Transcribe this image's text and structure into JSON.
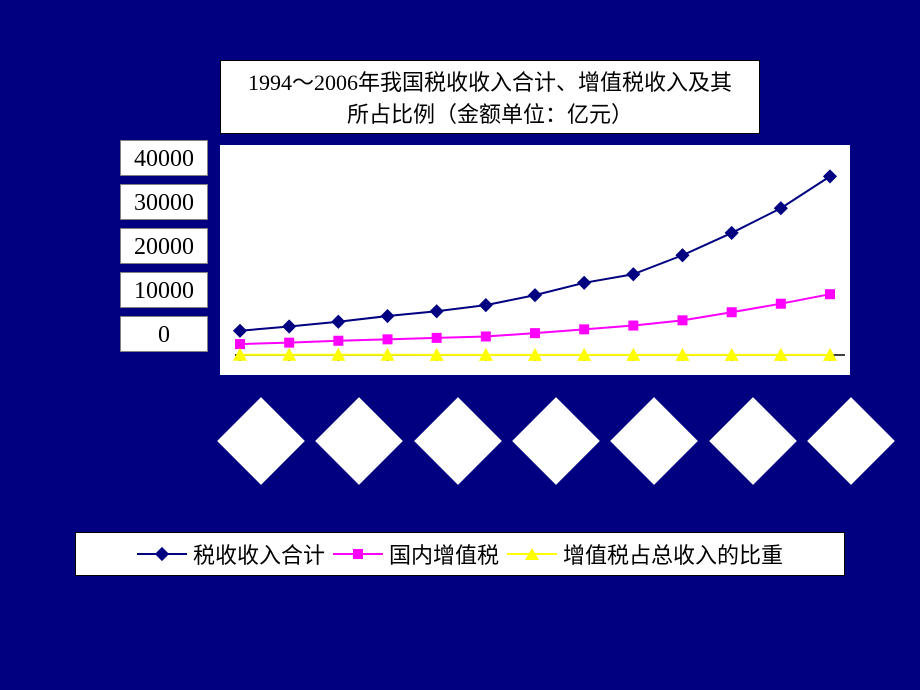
{
  "chart": {
    "type": "line",
    "background_color": "#000080",
    "plot_background": "#ffffff",
    "title_line1": "1994～2006年我国税收收入合计、增值税收入及其",
    "title_line2": "所占比例（金额单位：亿元）",
    "title_fontsize": 22,
    "title_box_bg": "#ffffff",
    "ylim": [
      0,
      40000
    ],
    "ytick_step": 10000,
    "y_ticks": [
      "40000",
      "30000",
      "20000",
      "10000",
      "0"
    ],
    "y_tick_fontsize": 24,
    "y_tick_bg": "#ffffff",
    "y_tick_border": "#808080",
    "x_categories_count": 13,
    "x_diamond_count": 7,
    "x_diamond_bg": "#ffffff",
    "series": [
      {
        "name": "税收收入合计",
        "label": "税收收入合计",
        "color": "#000080",
        "marker": "diamond",
        "marker_color": "#000080",
        "line_width": 2,
        "values": [
          5100,
          6000,
          7000,
          8200,
          9200,
          10500,
          12600,
          15200,
          17000,
          21000,
          25700,
          30900,
          37600
        ]
      },
      {
        "name": "国内增值税",
        "label": "国内增值税",
        "color": "#ff00ff",
        "marker": "square",
        "marker_color": "#ff00ff",
        "line_width": 2,
        "values": [
          2300,
          2600,
          3000,
          3300,
          3600,
          3900,
          4600,
          5400,
          6200,
          7300,
          9000,
          10800,
          12800
        ]
      },
      {
        "name": "增值税占总收入的比重",
        "label": "增值税占总收入的比重",
        "color": "#ffff00",
        "marker": "triangle",
        "marker_color": "#ffff00",
        "line_width": 2,
        "values": [
          45,
          43,
          43,
          40,
          39,
          37,
          36,
          35,
          36,
          35,
          35,
          35,
          34
        ]
      }
    ],
    "axis_color": "#000000",
    "tick_length": 6
  },
  "legend": {
    "bg": "#ffffff",
    "border": "#000000",
    "fontsize": 22,
    "items": [
      {
        "label": "税收收入合计",
        "color": "#000080",
        "marker": "diamond"
      },
      {
        "label": "国内增值税",
        "color": "#ff00ff",
        "marker": "square"
      },
      {
        "label": "增值税占总收入的比重",
        "color": "#ffff00",
        "marker": "triangle"
      }
    ]
  }
}
